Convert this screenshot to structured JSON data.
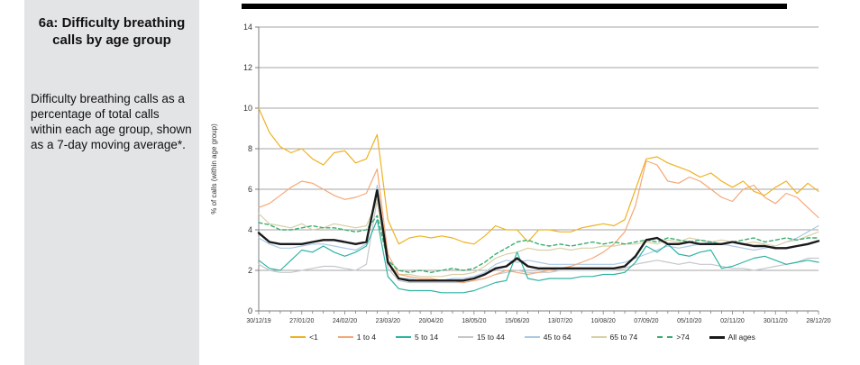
{
  "page": {
    "background": "#ffffff",
    "header_rule_color": "#000000"
  },
  "sidebar": {
    "background": "#e3e4e6",
    "title_line1": "6a: Difficulty breathing",
    "title_line2": "calls by age group",
    "description": "Difficulty breathing calls as a percentage of total calls within each age group, shown as a 7-day moving average*."
  },
  "chart_data": {
    "type": "line",
    "title": "",
    "xlabel": "",
    "ylabel": "% of calls (within age group)",
    "ylim": [
      0,
      14
    ],
    "yticks": [
      0,
      2,
      4,
      6,
      8,
      10,
      12,
      14
    ],
    "grid": "horizontal",
    "legend_position": "bottom",
    "n_points": 53,
    "x_tick_labels": [
      "30/12/19",
      "27/01/20",
      "24/02/20",
      "23/03/20",
      "20/04/20",
      "18/05/20",
      "15/06/20",
      "13/07/20",
      "10/08/20",
      "07/09/20",
      "05/10/20",
      "02/11/20",
      "30/11/20",
      "28/12/20"
    ],
    "x_minor_ticks_per_major": 4,
    "axis_color": "#7f7f7f",
    "grid_color": "#a6a6a6",
    "tick_label_color": "#333333",
    "series": [
      {
        "name": "<1",
        "color": "#eeb222",
        "width": 1.2,
        "dash": null,
        "values": [
          10.0,
          8.8,
          8.1,
          7.8,
          8.0,
          7.5,
          7.2,
          7.8,
          7.9,
          7.3,
          7.5,
          8.7,
          4.5,
          3.3,
          3.6,
          3.7,
          3.6,
          3.7,
          3.6,
          3.4,
          3.3,
          3.7,
          4.2,
          4.0,
          4.0,
          3.4,
          4.0,
          4.0,
          3.9,
          3.9,
          4.1,
          4.2,
          4.3,
          4.2,
          4.5,
          6.0,
          7.5,
          7.6,
          7.3,
          7.1,
          6.9,
          6.6,
          6.8,
          6.4,
          6.1,
          6.4,
          5.9,
          5.7,
          6.1,
          6.4,
          5.8,
          6.3,
          5.9
        ]
      },
      {
        "name": "1 to 4",
        "color": "#f5a877",
        "width": 1.2,
        "dash": null,
        "values": [
          5.1,
          5.3,
          5.7,
          6.1,
          6.4,
          6.3,
          6.0,
          5.7,
          5.5,
          5.6,
          5.8,
          7.0,
          2.8,
          1.8,
          1.7,
          1.6,
          1.6,
          1.5,
          1.5,
          1.4,
          1.5,
          1.6,
          1.8,
          2.0,
          1.9,
          1.8,
          1.9,
          2.0,
          2.1,
          2.2,
          2.4,
          2.6,
          2.9,
          3.3,
          3.9,
          5.2,
          7.4,
          7.2,
          6.4,
          6.3,
          6.6,
          6.4,
          6.0,
          5.6,
          5.4,
          6.0,
          6.2,
          5.6,
          5.3,
          5.8,
          5.6,
          5.1,
          4.6
        ]
      },
      {
        "name": "5 to 14",
        "color": "#2fb3a3",
        "width": 1.2,
        "dash": null,
        "values": [
          2.5,
          2.1,
          2.0,
          2.5,
          3.0,
          2.9,
          3.2,
          2.9,
          2.7,
          2.9,
          3.2,
          4.5,
          1.7,
          1.1,
          1.0,
          1.0,
          1.0,
          0.9,
          0.9,
          0.9,
          1.0,
          1.2,
          1.4,
          1.5,
          2.9,
          1.6,
          1.5,
          1.6,
          1.6,
          1.6,
          1.7,
          1.7,
          1.8,
          1.8,
          1.9,
          2.4,
          3.2,
          2.9,
          3.3,
          2.8,
          2.7,
          2.9,
          3.0,
          2.1,
          2.2,
          2.4,
          2.6,
          2.7,
          2.5,
          2.3,
          2.4,
          2.5,
          2.4
        ]
      },
      {
        "name": "15 to 44",
        "color": "#c4c7cb",
        "width": 1.2,
        "dash": null,
        "values": [
          2.3,
          2.0,
          1.9,
          1.9,
          2.0,
          2.1,
          2.2,
          2.2,
          2.1,
          2.0,
          2.3,
          5.5,
          2.1,
          1.5,
          1.4,
          1.4,
          1.4,
          1.4,
          1.4,
          1.4,
          1.5,
          1.6,
          1.8,
          1.9,
          2.0,
          1.9,
          1.9,
          1.9,
          2.0,
          2.0,
          2.0,
          2.0,
          2.0,
          2.0,
          2.1,
          2.3,
          2.4,
          2.5,
          2.4,
          2.3,
          2.4,
          2.3,
          2.3,
          2.2,
          2.1,
          2.1,
          2.0,
          2.1,
          2.2,
          2.3,
          2.4,
          2.6,
          2.6
        ]
      },
      {
        "name": "45 to 64",
        "color": "#abc9e5",
        "width": 1.2,
        "dash": null,
        "values": [
          3.6,
          3.3,
          3.1,
          3.1,
          3.2,
          3.3,
          3.3,
          3.2,
          3.1,
          3.0,
          3.3,
          6.2,
          2.4,
          1.6,
          1.6,
          1.5,
          1.5,
          1.5,
          1.6,
          1.6,
          1.7,
          1.9,
          2.3,
          2.5,
          2.4,
          2.5,
          2.4,
          2.3,
          2.3,
          2.3,
          2.3,
          2.3,
          2.3,
          2.3,
          2.4,
          2.6,
          2.8,
          3.0,
          3.2,
          3.1,
          3.2,
          3.3,
          3.4,
          3.3,
          3.2,
          3.1,
          3.0,
          3.1,
          3.2,
          3.4,
          3.6,
          3.9,
          4.2
        ]
      },
      {
        "name": "65 to 74",
        "color": "#d7d0a6",
        "width": 1.2,
        "dash": null,
        "values": [
          4.8,
          4.3,
          4.2,
          4.1,
          4.3,
          4.0,
          4.1,
          4.3,
          4.2,
          4.1,
          4.2,
          5.4,
          2.4,
          1.8,
          1.8,
          1.7,
          1.7,
          1.7,
          1.8,
          1.8,
          1.9,
          2.2,
          2.6,
          2.8,
          2.9,
          3.1,
          3.0,
          3.0,
          3.1,
          3.0,
          3.1,
          3.1,
          3.2,
          3.2,
          3.3,
          3.3,
          3.4,
          3.3,
          3.5,
          3.4,
          3.6,
          3.5,
          3.4,
          3.5,
          3.4,
          3.3,
          3.4,
          3.3,
          3.2,
          3.4,
          3.5,
          3.7,
          3.9
        ]
      },
      {
        "name": ">74",
        "color": "#3bad6f",
        "width": 1.4,
        "dash": "4 3",
        "values": [
          4.35,
          4.25,
          4.0,
          4.0,
          4.1,
          4.2,
          4.1,
          4.1,
          4.0,
          3.9,
          4.0,
          4.7,
          2.5,
          2.0,
          1.9,
          2.0,
          1.9,
          2.0,
          2.1,
          2.0,
          2.1,
          2.4,
          2.8,
          3.1,
          3.4,
          3.5,
          3.3,
          3.2,
          3.3,
          3.2,
          3.3,
          3.4,
          3.3,
          3.4,
          3.3,
          3.4,
          3.5,
          3.4,
          3.6,
          3.5,
          3.4,
          3.5,
          3.4,
          3.3,
          3.4,
          3.5,
          3.6,
          3.4,
          3.5,
          3.6,
          3.5,
          3.6,
          3.6
        ]
      },
      {
        "name": "All ages",
        "color": "#1a1a1a",
        "width": 2.4,
        "dash": null,
        "values": [
          3.85,
          3.4,
          3.3,
          3.3,
          3.3,
          3.4,
          3.5,
          3.5,
          3.4,
          3.3,
          3.4,
          5.95,
          2.4,
          1.6,
          1.5,
          1.5,
          1.5,
          1.5,
          1.5,
          1.5,
          1.6,
          1.8,
          2.1,
          2.2,
          2.6,
          2.2,
          2.1,
          2.1,
          2.1,
          2.1,
          2.1,
          2.1,
          2.1,
          2.1,
          2.2,
          2.7,
          3.5,
          3.6,
          3.3,
          3.3,
          3.4,
          3.3,
          3.3,
          3.3,
          3.4,
          3.3,
          3.2,
          3.2,
          3.1,
          3.1,
          3.2,
          3.3,
          3.45
        ]
      }
    ]
  }
}
